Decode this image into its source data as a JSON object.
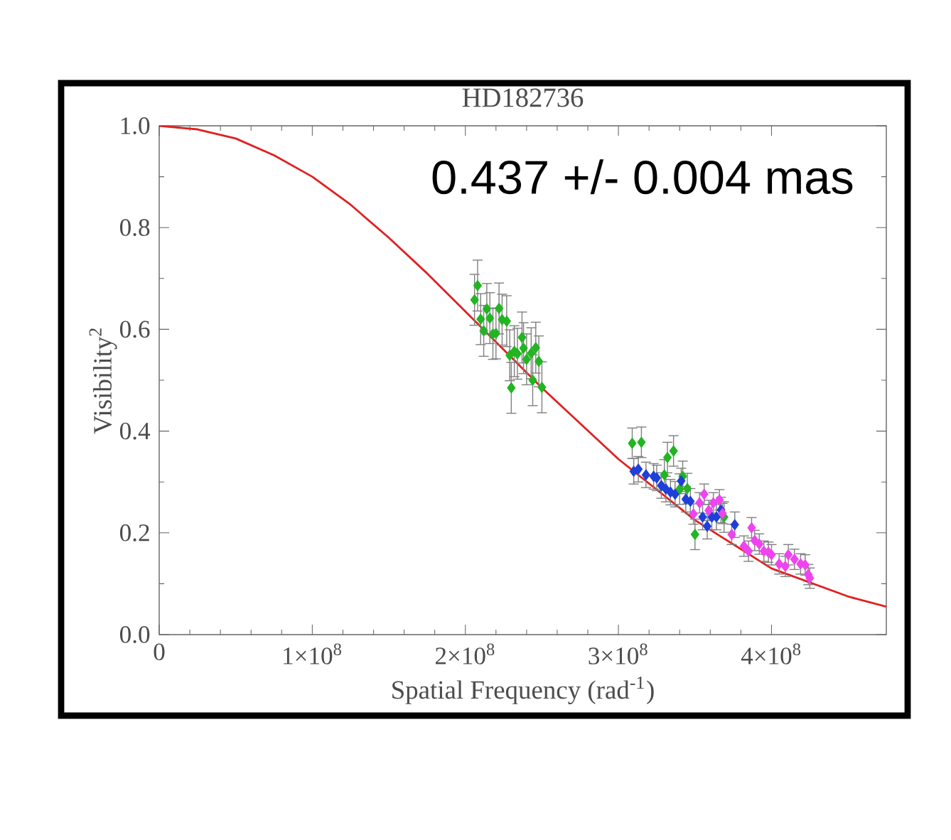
{
  "chart_data": {
    "type": "scatter",
    "title": "HD182736",
    "xlabel": "Spatial Frequency (rad$^{-1}$)",
    "ylabel": "Visibility$^{2}$",
    "annotations": [
      "0.437 +/- 0.004 mas"
    ],
    "xlim": [
      0,
      475000000.0
    ],
    "ylim": [
      0,
      1.0
    ],
    "xticks": [
      0,
      {
        "value": 100000000.0,
        "label": "1×10$^{8}$"
      },
      {
        "value": 200000000.0,
        "label": "2×10$^{8}$"
      },
      {
        "value": 300000000.0,
        "label": "3×10$^{8}$"
      },
      {
        "value": 400000000.0,
        "label": "4×10$^{8}$"
      }
    ],
    "yticks": [
      {
        "value": 0,
        "label": "0.0"
      },
      {
        "value": 0.2,
        "label": "0.2"
      },
      {
        "value": 0.4,
        "label": "0.4"
      },
      {
        "value": 0.6,
        "label": "0.6"
      },
      {
        "value": 0.8,
        "label": "0.8"
      },
      {
        "value": 1.0,
        "label": "1.0"
      }
    ],
    "marker": "diamond",
    "series": [
      {
        "type": "line",
        "color": "#e02020",
        "marker": "none",
        "x": [
          0,
          25000000.0,
          50000000.0,
          75000000.0,
          100000000.0,
          125000000.0,
          150000000.0,
          175000000.0,
          200000000.0,
          250000000.0,
          300000000.0,
          350000000.0,
          400000000.0,
          450000000.0,
          475000000.0
        ],
        "values": [
          1.0,
          0.993,
          0.975,
          0.942,
          0.9,
          0.845,
          0.78,
          0.71,
          0.635,
          0.485,
          0.345,
          0.225,
          0.13,
          0.075,
          0.055
        ]
      },
      {
        "color": "#22b522",
        "x": [
          208000000.0,
          206000000.0,
          214000000.0,
          222000000.0,
          210000000.0,
          216000000.0,
          224000000.0,
          227000000.0,
          212000000.0,
          218000000.0,
          220000000.0,
          237000000.0,
          229000000.0,
          232000000.0,
          234000000.0,
          238000000.0,
          243000000.0,
          240000000.0,
          246000000.0,
          248000000.0,
          230000000.0,
          244000000.0,
          250000000.0,
          309000000.0,
          315000000.0,
          332000000.0,
          336000000.0,
          330000000.0,
          340000000.0,
          345000000.0,
          342000000.0,
          350000000.0,
          369000000.0
        ],
        "values": [
          0.686,
          0.658,
          0.64,
          0.641,
          0.62,
          0.622,
          0.619,
          0.616,
          0.597,
          0.591,
          0.592,
          0.584,
          0.549,
          0.557,
          0.552,
          0.563,
          0.553,
          0.541,
          0.564,
          0.537,
          0.485,
          0.5,
          0.486,
          0.376,
          0.378,
          0.348,
          0.361,
          0.314,
          0.286,
          0.287,
          0.311,
          0.197,
          0.231
        ],
        "errors": [
          0.05,
          0.05,
          0.05,
          0.05,
          0.05,
          0.05,
          0.05,
          0.05,
          0.05,
          0.05,
          0.05,
          0.05,
          0.05,
          0.05,
          0.05,
          0.05,
          0.05,
          0.05,
          0.05,
          0.05,
          0.05,
          0.05,
          0.05,
          0.03,
          0.03,
          0.03,
          0.03,
          0.03,
          0.03,
          0.03,
          0.03,
          0.03,
          0.03
        ]
      },
      {
        "color": "#1f3fd9",
        "x": [
          310000000.0,
          313000000.0,
          318000000.0,
          323000000.0,
          325000000.0,
          328000000.0,
          331000000.0,
          334000000.0,
          337000000.0,
          341000000.0,
          344000000.0,
          347000000.0,
          355000000.0,
          358000000.0,
          361000000.0,
          364000000.0,
          367000000.0,
          376000000.0
        ],
        "values": [
          0.321,
          0.325,
          0.314,
          0.311,
          0.308,
          0.293,
          0.286,
          0.28,
          0.276,
          0.302,
          0.266,
          0.262,
          0.231,
          0.213,
          0.231,
          0.231,
          0.245,
          0.216
        ],
        "errors": [
          0.025,
          0.025,
          0.025,
          0.025,
          0.025,
          0.025,
          0.025,
          0.025,
          0.025,
          0.025,
          0.025,
          0.025,
          0.025,
          0.025,
          0.025,
          0.025,
          0.025,
          0.025
        ]
      },
      {
        "color": "#ee44ee",
        "x": [
          349000000.0,
          353000000.0,
          356000000.0,
          359000000.0,
          362000000.0,
          365000000.0,
          366000000.0,
          368000000.0,
          374000000.0,
          382000000.0,
          385000000.0,
          387000000.0,
          389000000.0,
          392000000.0,
          395000000.0,
          398000000.0,
          400000000.0,
          405000000.0,
          409000000.0,
          411000000.0,
          415000000.0,
          419000000.0,
          422000000.0,
          424000000.0,
          425000000.0
        ],
        "values": [
          0.237,
          0.259,
          0.276,
          0.244,
          0.259,
          null,
          0.265,
          0.238,
          0.197,
          0.174,
          0.164,
          0.21,
          0.185,
          0.178,
          0.164,
          0.162,
          0.157,
          0.139,
          0.134,
          0.157,
          0.148,
          0.139,
          0.137,
          0.118,
          0.111
        ],
        "errors": [
          0.02,
          0.02,
          0.02,
          0.02,
          0.02,
          null,
          0.02,
          0.02,
          0.02,
          0.02,
          0.02,
          0.02,
          0.02,
          0.02,
          0.02,
          0.02,
          0.02,
          0.02,
          0.02,
          0.02,
          0.02,
          0.02,
          0.02,
          0.02,
          0.02
        ]
      }
    ]
  }
}
